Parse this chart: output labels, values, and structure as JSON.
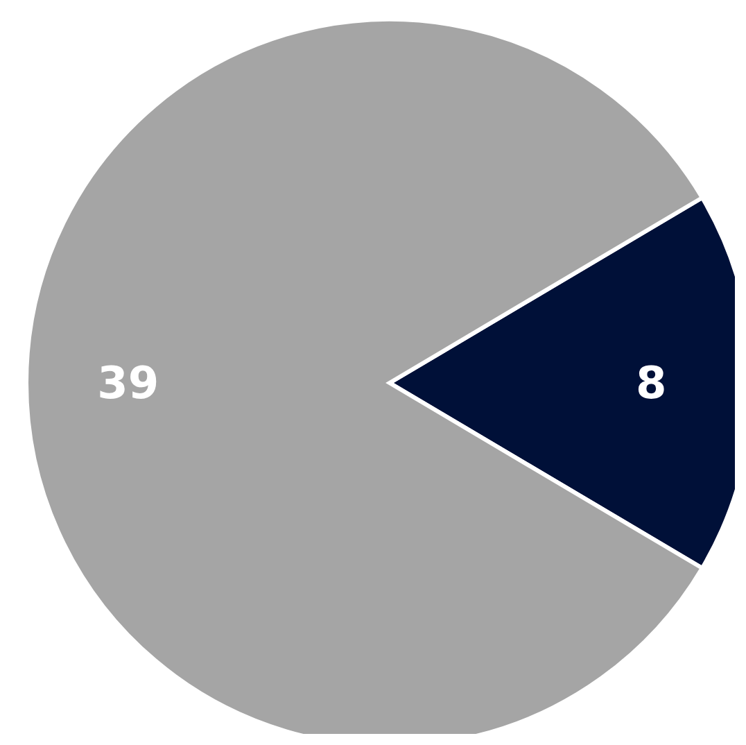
{
  "chart_data": {
    "type": "pie",
    "categories": [
      null,
      null
    ],
    "values": [
      8,
      39
    ],
    "colors": [
      "#001038",
      "#a5a5a5"
    ],
    "data_labels": true
  }
}
